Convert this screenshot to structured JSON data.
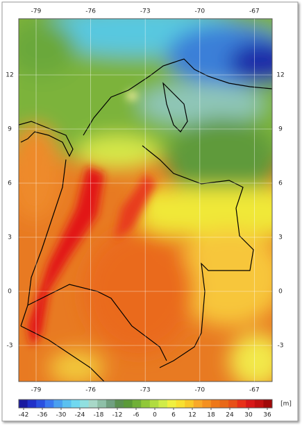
{
  "map": {
    "lon_ticks": [
      -79,
      -76,
      -73,
      -70,
      -67
    ],
    "lat_ticks": [
      12,
      9,
      6,
      3,
      0,
      -3
    ],
    "colorbar": {
      "ticks": [
        -42,
        -36,
        -30,
        -24,
        -18,
        -12,
        -6,
        0,
        6,
        12,
        18,
        24,
        30,
        36
      ],
      "unit": "[m]"
    }
  }
}
